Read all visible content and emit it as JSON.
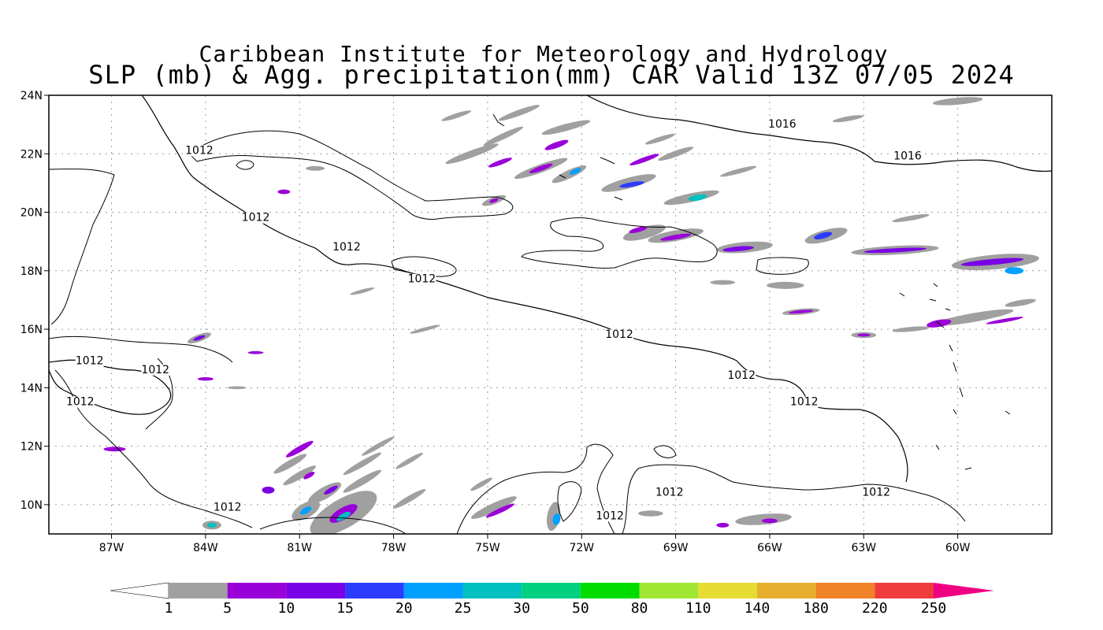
{
  "header": {
    "title": "Caribbean Institute for Meteorology and Hydrology",
    "subtitle": "SLP (mb) & Agg. precipitation(mm) CAR Valid 13Z 07/05 2024"
  },
  "map": {
    "lon_range": [
      -89.0,
      -57.0
    ],
    "lat_range": [
      9.0,
      24.0
    ],
    "grid": "dotted",
    "y_ticks": [
      {
        "value": 24,
        "label": "24N"
      },
      {
        "value": 22,
        "label": "22N"
      },
      {
        "value": 20,
        "label": "20N"
      },
      {
        "value": 18,
        "label": "18N"
      },
      {
        "value": 16,
        "label": "16N"
      },
      {
        "value": 14,
        "label": "14N"
      },
      {
        "value": 12,
        "label": "12N"
      },
      {
        "value": 10,
        "label": "10N"
      }
    ],
    "x_ticks": [
      {
        "value": -87,
        "label": "87W"
      },
      {
        "value": -84,
        "label": "84W"
      },
      {
        "value": -81,
        "label": "81W"
      },
      {
        "value": -78,
        "label": "78W"
      },
      {
        "value": -75,
        "label": "75W"
      },
      {
        "value": -72,
        "label": "72W"
      },
      {
        "value": -69,
        "label": "69W"
      },
      {
        "value": -66,
        "label": "66W"
      },
      {
        "value": -63,
        "label": "63W"
      },
      {
        "value": -60,
        "label": "60W"
      }
    ],
    "isobar_labels": [
      {
        "text": "1016",
        "lon": -65.6,
        "lat": 22.9
      },
      {
        "text": "1016",
        "lon": -61.6,
        "lat": 21.8
      },
      {
        "text": "1012",
        "lon": -84.2,
        "lat": 22.0
      },
      {
        "text": "1012",
        "lon": -82.4,
        "lat": 19.7
      },
      {
        "text": "1012",
        "lon": -79.5,
        "lat": 18.7
      },
      {
        "text": "1012",
        "lon": -77.1,
        "lat": 17.6
      },
      {
        "text": "1012",
        "lon": -70.8,
        "lat": 15.7
      },
      {
        "text": "1012",
        "lon": -66.9,
        "lat": 14.3
      },
      {
        "text": "1012",
        "lon": -64.9,
        "lat": 13.4
      },
      {
        "text": "1012",
        "lon": -87.7,
        "lat": 14.8
      },
      {
        "text": "1012",
        "lon": -85.6,
        "lat": 14.5
      },
      {
        "text": "1012",
        "lon": -88.0,
        "lat": 13.4
      },
      {
        "text": "1012",
        "lon": -83.3,
        "lat": 9.8
      },
      {
        "text": "1012",
        "lon": -69.2,
        "lat": 10.3
      },
      {
        "text": "1012",
        "lon": -71.1,
        "lat": 9.5
      },
      {
        "text": "1012",
        "lon": -62.6,
        "lat": 10.3
      }
    ]
  },
  "precipitation": [
    {
      "lon": -76.0,
      "lat": 23.3,
      "rx": 0.5,
      "ry": 0.08,
      "rot": -18,
      "level": 0
    },
    {
      "lon": -74.0,
      "lat": 23.4,
      "rx": 0.7,
      "ry": 0.1,
      "rot": -20,
      "level": 0
    },
    {
      "lon": -72.5,
      "lat": 22.9,
      "rx": 0.8,
      "ry": 0.12,
      "rot": -15,
      "level": 0
    },
    {
      "lon": -72.8,
      "lat": 22.3,
      "rx": 0.4,
      "ry": 0.1,
      "rot": -20,
      "level": 1
    },
    {
      "lon": -74.5,
      "lat": 22.6,
      "rx": 0.7,
      "ry": 0.1,
      "rot": -25,
      "level": 0
    },
    {
      "lon": -75.5,
      "lat": 22.0,
      "rx": 0.9,
      "ry": 0.12,
      "rot": -20,
      "level": 0
    },
    {
      "lon": -74.6,
      "lat": 21.7,
      "rx": 0.4,
      "ry": 0.08,
      "rot": -20,
      "level": 1
    },
    {
      "lon": -73.3,
      "lat": 21.5,
      "rx": 0.9,
      "ry": 0.14,
      "rot": -20,
      "level": 0
    },
    {
      "lon": -73.3,
      "lat": 21.5,
      "rx": 0.4,
      "ry": 0.08,
      "rot": -20,
      "level": 1
    },
    {
      "lon": -72.4,
      "lat": 21.3,
      "rx": 0.6,
      "ry": 0.14,
      "rot": -25,
      "level": 0
    },
    {
      "lon": -72.2,
      "lat": 21.4,
      "rx": 0.2,
      "ry": 0.08,
      "rot": -25,
      "level": 4
    },
    {
      "lon": -70.5,
      "lat": 21.0,
      "rx": 0.9,
      "ry": 0.18,
      "rot": -15,
      "level": 0
    },
    {
      "lon": -70.4,
      "lat": 20.95,
      "rx": 0.4,
      "ry": 0.08,
      "rot": -10,
      "level": 3
    },
    {
      "lon": -68.5,
      "lat": 20.5,
      "rx": 0.9,
      "ry": 0.15,
      "rot": -12,
      "level": 0
    },
    {
      "lon": -68.3,
      "lat": 20.5,
      "rx": 0.3,
      "ry": 0.1,
      "rot": -10,
      "level": 5
    },
    {
      "lon": -69.0,
      "lat": 22.0,
      "rx": 0.6,
      "ry": 0.1,
      "rot": -20,
      "level": 0
    },
    {
      "lon": -69.5,
      "lat": 22.5,
      "rx": 0.5,
      "ry": 0.08,
      "rot": -18,
      "level": 0
    },
    {
      "lon": -70.0,
      "lat": 21.8,
      "rx": 0.5,
      "ry": 0.08,
      "rot": -20,
      "level": 1
    },
    {
      "lon": -67.0,
      "lat": 21.4,
      "rx": 0.6,
      "ry": 0.08,
      "rot": -15,
      "level": 0
    },
    {
      "lon": -60.0,
      "lat": 23.8,
      "rx": 0.8,
      "ry": 0.12,
      "rot": -5,
      "level": 0
    },
    {
      "lon": -63.5,
      "lat": 23.2,
      "rx": 0.5,
      "ry": 0.08,
      "rot": -10,
      "level": 0
    },
    {
      "lon": -74.8,
      "lat": 20.4,
      "rx": 0.4,
      "ry": 0.12,
      "rot": -20,
      "level": 0
    },
    {
      "lon": -74.8,
      "lat": 20.4,
      "rx": 0.15,
      "ry": 0.06,
      "rot": -20,
      "level": 1
    },
    {
      "lon": -70.0,
      "lat": 19.3,
      "rx": 0.7,
      "ry": 0.2,
      "rot": -15,
      "level": 0
    },
    {
      "lon": -70.2,
      "lat": 19.4,
      "rx": 0.3,
      "ry": 0.08,
      "rot": -15,
      "level": 1
    },
    {
      "lon": -69.0,
      "lat": 19.2,
      "rx": 0.9,
      "ry": 0.18,
      "rot": -10,
      "level": 0
    },
    {
      "lon": -69.0,
      "lat": 19.15,
      "rx": 0.5,
      "ry": 0.08,
      "rot": -10,
      "level": 1
    },
    {
      "lon": -66.8,
      "lat": 18.8,
      "rx": 0.9,
      "ry": 0.18,
      "rot": -5,
      "level": 0
    },
    {
      "lon": -67.0,
      "lat": 18.75,
      "rx": 0.5,
      "ry": 0.08,
      "rot": -5,
      "level": 2
    },
    {
      "lon": -64.2,
      "lat": 19.2,
      "rx": 0.7,
      "ry": 0.2,
      "rot": -15,
      "level": 0
    },
    {
      "lon": -64.3,
      "lat": 19.2,
      "rx": 0.3,
      "ry": 0.1,
      "rot": -15,
      "level": 3
    },
    {
      "lon": -62.0,
      "lat": 18.7,
      "rx": 1.4,
      "ry": 0.15,
      "rot": -3,
      "level": 0
    },
    {
      "lon": -62.0,
      "lat": 18.7,
      "rx": 1.0,
      "ry": 0.07,
      "rot": -3,
      "level": 2
    },
    {
      "lon": -58.8,
      "lat": 18.3,
      "rx": 1.4,
      "ry": 0.25,
      "rot": -5,
      "level": 0
    },
    {
      "lon": -58.9,
      "lat": 18.3,
      "rx": 1.0,
      "ry": 0.1,
      "rot": -5,
      "level": 2
    },
    {
      "lon": -58.2,
      "lat": 18.0,
      "rx": 0.3,
      "ry": 0.12,
      "rot": 0,
      "level": 4
    },
    {
      "lon": -61.5,
      "lat": 19.8,
      "rx": 0.6,
      "ry": 0.08,
      "rot": -10,
      "level": 0
    },
    {
      "lon": -65.5,
      "lat": 17.5,
      "rx": 0.6,
      "ry": 0.12,
      "rot": 0,
      "level": 0
    },
    {
      "lon": -67.5,
      "lat": 17.6,
      "rx": 0.4,
      "ry": 0.08,
      "rot": 0,
      "level": 0
    },
    {
      "lon": -65.0,
      "lat": 16.6,
      "rx": 0.6,
      "ry": 0.1,
      "rot": -5,
      "level": 0
    },
    {
      "lon": -65.0,
      "lat": 16.6,
      "rx": 0.4,
      "ry": 0.05,
      "rot": -5,
      "level": 1
    },
    {
      "lon": -59.5,
      "lat": 16.4,
      "rx": 1.3,
      "ry": 0.15,
      "rot": -10,
      "level": 0
    },
    {
      "lon": -60.6,
      "lat": 16.2,
      "rx": 0.4,
      "ry": 0.12,
      "rot": -10,
      "level": 1
    },
    {
      "lon": -58.5,
      "lat": 16.3,
      "rx": 0.6,
      "ry": 0.06,
      "rot": -10,
      "level": 1
    },
    {
      "lon": -63.0,
      "lat": 15.8,
      "rx": 0.4,
      "ry": 0.1,
      "rot": 0,
      "level": 0
    },
    {
      "lon": -63.0,
      "lat": 15.8,
      "rx": 0.2,
      "ry": 0.05,
      "rot": 0,
      "level": 1
    },
    {
      "lon": -58.0,
      "lat": 16.9,
      "rx": 0.5,
      "ry": 0.1,
      "rot": -10,
      "level": 0
    },
    {
      "lon": -61.5,
      "lat": 16.0,
      "rx": 0.6,
      "ry": 0.08,
      "rot": -5,
      "level": 0
    },
    {
      "lon": -79.6,
      "lat": 9.7,
      "rx": 1.2,
      "ry": 0.5,
      "rot": -30,
      "level": 0
    },
    {
      "lon": -79.6,
      "lat": 9.7,
      "rx": 0.5,
      "ry": 0.2,
      "rot": -30,
      "level": 1
    },
    {
      "lon": -79.6,
      "lat": 9.6,
      "rx": 0.25,
      "ry": 0.1,
      "rot": -30,
      "level": 5
    },
    {
      "lon": -80.8,
      "lat": 9.8,
      "rx": 0.5,
      "ry": 0.25,
      "rot": -30,
      "level": 0
    },
    {
      "lon": -80.8,
      "lat": 9.8,
      "rx": 0.2,
      "ry": 0.1,
      "rot": -30,
      "level": 4
    },
    {
      "lon": -80.2,
      "lat": 10.4,
      "rx": 0.6,
      "ry": 0.2,
      "rot": -30,
      "level": 0
    },
    {
      "lon": -80.0,
      "lat": 10.5,
      "rx": 0.25,
      "ry": 0.08,
      "rot": -30,
      "level": 2
    },
    {
      "lon": -81.0,
      "lat": 11.0,
      "rx": 0.6,
      "ry": 0.12,
      "rot": -30,
      "level": 0
    },
    {
      "lon": -80.7,
      "lat": 11.0,
      "rx": 0.2,
      "ry": 0.08,
      "rot": -30,
      "level": 1
    },
    {
      "lon": -81.3,
      "lat": 11.4,
      "rx": 0.6,
      "ry": 0.12,
      "rot": -30,
      "level": 0
    },
    {
      "lon": -81.0,
      "lat": 11.9,
      "rx": 0.5,
      "ry": 0.1,
      "rot": -30,
      "level": 1
    },
    {
      "lon": -79.0,
      "lat": 11.4,
      "rx": 0.7,
      "ry": 0.1,
      "rot": -30,
      "level": 0
    },
    {
      "lon": -78.5,
      "lat": 12.0,
      "rx": 0.6,
      "ry": 0.08,
      "rot": -30,
      "level": 0
    },
    {
      "lon": -77.5,
      "lat": 11.5,
      "rx": 0.5,
      "ry": 0.08,
      "rot": -30,
      "level": 0
    },
    {
      "lon": -79.0,
      "lat": 10.8,
      "rx": 0.7,
      "ry": 0.12,
      "rot": -30,
      "level": 0
    },
    {
      "lon": -77.5,
      "lat": 10.2,
      "rx": 0.6,
      "ry": 0.1,
      "rot": -30,
      "level": 0
    },
    {
      "lon": -82.0,
      "lat": 10.5,
      "rx": 0.2,
      "ry": 0.12,
      "rot": 0,
      "level": 2
    },
    {
      "lon": -83.8,
      "lat": 9.3,
      "rx": 0.3,
      "ry": 0.15,
      "rot": 0,
      "level": 0
    },
    {
      "lon": -83.8,
      "lat": 9.3,
      "rx": 0.15,
      "ry": 0.08,
      "rot": 0,
      "level": 5
    },
    {
      "lon": -86.9,
      "lat": 11.9,
      "rx": 0.35,
      "ry": 0.08,
      "rot": 0,
      "level": 1
    },
    {
      "lon": -84.0,
      "lat": 14.3,
      "rx": 0.25,
      "ry": 0.06,
      "rot": 0,
      "level": 1
    },
    {
      "lon": -84.2,
      "lat": 15.7,
      "rx": 0.4,
      "ry": 0.12,
      "rot": -20,
      "level": 0
    },
    {
      "lon": -84.2,
      "lat": 15.7,
      "rx": 0.2,
      "ry": 0.06,
      "rot": -20,
      "level": 2
    },
    {
      "lon": -82.4,
      "lat": 15.2,
      "rx": 0.25,
      "ry": 0.05,
      "rot": 0,
      "level": 1
    },
    {
      "lon": -83.0,
      "lat": 14.0,
      "rx": 0.3,
      "ry": 0.05,
      "rot": 0,
      "level": 0
    },
    {
      "lon": -74.8,
      "lat": 9.9,
      "rx": 0.8,
      "ry": 0.15,
      "rot": -25,
      "level": 0
    },
    {
      "lon": -74.6,
      "lat": 9.8,
      "rx": 0.5,
      "ry": 0.08,
      "rot": -25,
      "level": 1
    },
    {
      "lon": -72.9,
      "lat": 9.6,
      "rx": 0.2,
      "ry": 0.5,
      "rot": 10,
      "level": 0
    },
    {
      "lon": -72.8,
      "lat": 9.5,
      "rx": 0.12,
      "ry": 0.2,
      "rot": 10,
      "level": 4
    },
    {
      "lon": -75.2,
      "lat": 10.7,
      "rx": 0.4,
      "ry": 0.08,
      "rot": -30,
      "level": 0
    },
    {
      "lon": -66.2,
      "lat": 9.5,
      "rx": 0.9,
      "ry": 0.18,
      "rot": -5,
      "level": 0
    },
    {
      "lon": -66.0,
      "lat": 9.45,
      "rx": 0.25,
      "ry": 0.08,
      "rot": 0,
      "level": 1
    },
    {
      "lon": -67.5,
      "lat": 9.3,
      "rx": 0.2,
      "ry": 0.08,
      "rot": 0,
      "level": 1
    },
    {
      "lon": -69.8,
      "lat": 9.7,
      "rx": 0.4,
      "ry": 0.1,
      "rot": 0,
      "level": 0
    },
    {
      "lon": -77.0,
      "lat": 16.0,
      "rx": 0.5,
      "ry": 0.06,
      "rot": -15,
      "level": 0
    },
    {
      "lon": -79.0,
      "lat": 17.3,
      "rx": 0.4,
      "ry": 0.06,
      "rot": -15,
      "level": 0
    },
    {
      "lon": -80.5,
      "lat": 21.5,
      "rx": 0.3,
      "ry": 0.08,
      "rot": 0,
      "level": 0
    },
    {
      "lon": -81.5,
      "lat": 20.7,
      "rx": 0.2,
      "ry": 0.08,
      "rot": 0,
      "level": 1
    }
  ],
  "colorbar": {
    "levels": [
      "1",
      "5",
      "10",
      "15",
      "20",
      "25",
      "30",
      "50",
      "80",
      "110",
      "140",
      "180",
      "220",
      "250"
    ],
    "colors": [
      "#a0a0a0",
      "#9a00d8",
      "#7a00e6",
      "#2c3cff",
      "#00a0ff",
      "#00c0c0",
      "#00d080",
      "#00dc00",
      "#a0e632",
      "#e6dc32",
      "#e6af2d",
      "#f08228",
      "#f03c3c",
      "#f00082"
    ]
  }
}
